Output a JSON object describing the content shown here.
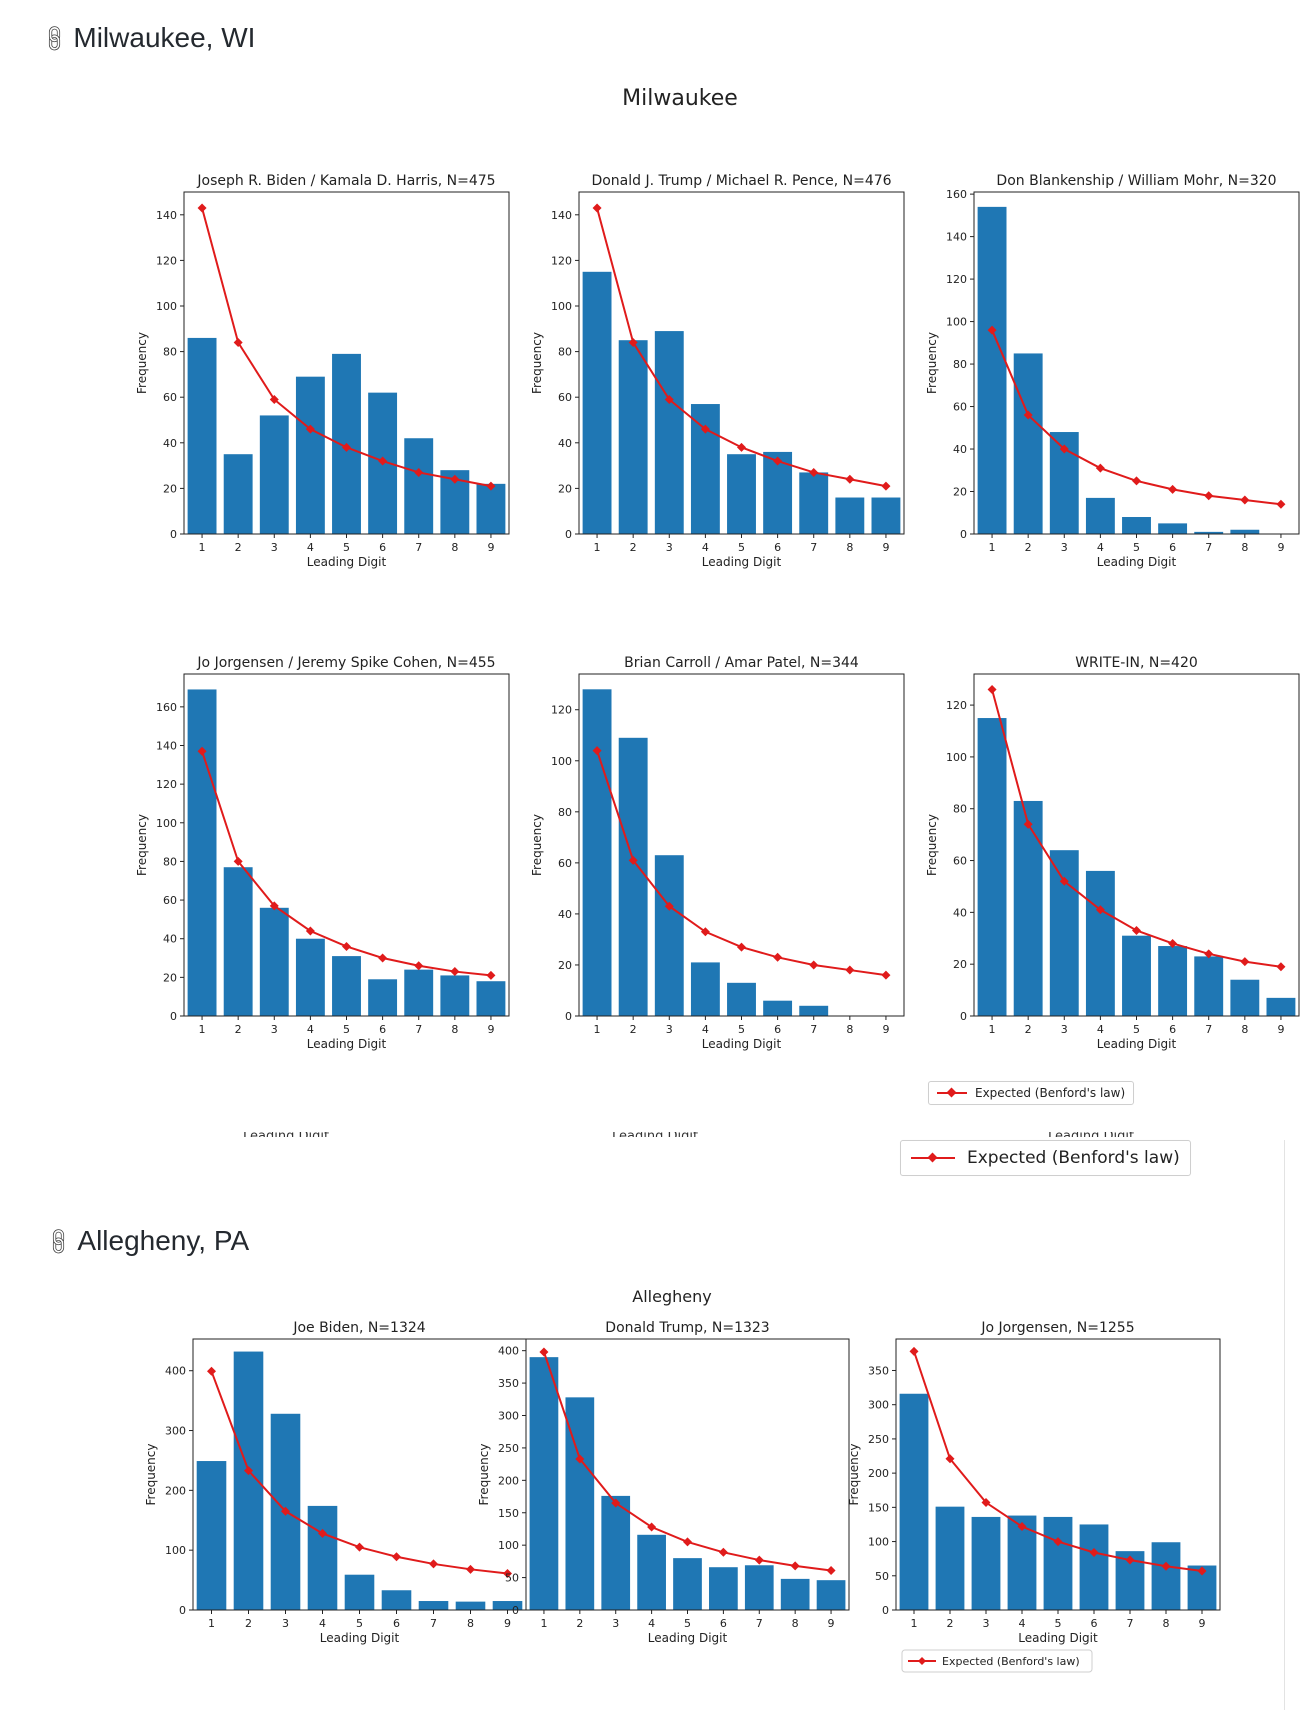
{
  "sections": {
    "milwaukee": {
      "heading": "Milwaukee, WI",
      "figure_title": "Milwaukee"
    },
    "allegheny": {
      "heading": "Allegheny, PA",
      "figure_title": "Allegheny"
    }
  },
  "legend": {
    "label": "Expected (Benford's law)",
    "line_color": "#e01b1b",
    "bar_color": "#1f77b4"
  },
  "icons": {
    "heading_link": "link-icon"
  },
  "ghost_label": "Leading Digit",
  "chart_data": [
    {
      "id": "mke-biden",
      "type": "bar",
      "title": "Joseph R. Biden / Kamala D. Harris, N=475",
      "xlabel": "Leading Digit",
      "ylabel": "Frequency",
      "categories": [
        "1",
        "2",
        "3",
        "4",
        "5",
        "6",
        "7",
        "8",
        "9"
      ],
      "series": [
        {
          "values": [
            86,
            35,
            52,
            69,
            79,
            62,
            42,
            28,
            22
          ]
        },
        {
          "name": "Expected (Benford's law)",
          "values": [
            143,
            84,
            59,
            46,
            38,
            32,
            27,
            24,
            21
          ]
        }
      ],
      "ylim": [
        0,
        150
      ],
      "yticks": [
        0,
        20,
        40,
        60,
        80,
        100,
        120,
        140
      ],
      "legend": false
    },
    {
      "id": "mke-trump",
      "type": "bar",
      "title": "Donald J. Trump / Michael R. Pence, N=476",
      "xlabel": "Leading Digit",
      "ylabel": "Frequency",
      "categories": [
        "1",
        "2",
        "3",
        "4",
        "5",
        "6",
        "7",
        "8",
        "9"
      ],
      "series": [
        {
          "values": [
            115,
            85,
            89,
            57,
            35,
            36,
            27,
            16,
            16
          ]
        },
        {
          "name": "Expected (Benford's law)",
          "values": [
            143,
            84,
            59,
            46,
            38,
            32,
            27,
            24,
            21
          ]
        }
      ],
      "ylim": [
        0,
        150
      ],
      "yticks": [
        0,
        20,
        40,
        60,
        80,
        100,
        120,
        140
      ],
      "legend": false
    },
    {
      "id": "mke-blankenship",
      "type": "bar",
      "title": "Don Blankenship / William Mohr, N=320",
      "xlabel": "Leading Digit",
      "ylabel": "Frequency",
      "categories": [
        "1",
        "2",
        "3",
        "4",
        "5",
        "6",
        "7",
        "8",
        "9"
      ],
      "series": [
        {
          "values": [
            154,
            85,
            48,
            17,
            8,
            5,
            1,
            2,
            0
          ]
        },
        {
          "name": "Expected (Benford's law)",
          "values": [
            96,
            56,
            40,
            31,
            25,
            21,
            18,
            16,
            14
          ]
        }
      ],
      "ylim": [
        0,
        161
      ],
      "yticks": [
        0,
        20,
        40,
        60,
        80,
        100,
        120,
        140,
        160
      ],
      "legend": false
    },
    {
      "id": "mke-jorgensen",
      "type": "bar",
      "title": "Jo Jorgensen / Jeremy Spike Cohen, N=455",
      "xlabel": "Leading Digit",
      "ylabel": "Frequency",
      "categories": [
        "1",
        "2",
        "3",
        "4",
        "5",
        "6",
        "7",
        "8",
        "9"
      ],
      "series": [
        {
          "values": [
            169,
            77,
            56,
            40,
            31,
            19,
            24,
            21,
            18
          ]
        },
        {
          "name": "Expected (Benford's law)",
          "values": [
            137,
            80,
            57,
            44,
            36,
            30,
            26,
            23,
            21
          ]
        }
      ],
      "ylim": [
        0,
        177
      ],
      "yticks": [
        0,
        20,
        40,
        60,
        80,
        100,
        120,
        140,
        160
      ],
      "legend": false
    },
    {
      "id": "mke-carroll",
      "type": "bar",
      "title": "Brian Carroll / Amar Patel, N=344",
      "xlabel": "Leading Digit",
      "ylabel": "Frequency",
      "categories": [
        "1",
        "2",
        "3",
        "4",
        "5",
        "6",
        "7",
        "8",
        "9"
      ],
      "series": [
        {
          "values": [
            128,
            109,
            63,
            21,
            13,
            6,
            4,
            0,
            0
          ]
        },
        {
          "name": "Expected (Benford's law)",
          "values": [
            104,
            61,
            43,
            33,
            27,
            23,
            20,
            18,
            16
          ]
        }
      ],
      "ylim": [
        0,
        134
      ],
      "yticks": [
        0,
        20,
        40,
        60,
        80,
        100,
        120
      ],
      "legend": false
    },
    {
      "id": "mke-writein",
      "type": "bar",
      "title": "WRITE-IN, N=420",
      "xlabel": "Leading Digit",
      "ylabel": "Frequency",
      "categories": [
        "1",
        "2",
        "3",
        "4",
        "5",
        "6",
        "7",
        "8",
        "9"
      ],
      "series": [
        {
          "values": [
            115,
            83,
            64,
            56,
            31,
            27,
            23,
            14,
            7
          ]
        },
        {
          "name": "Expected (Benford's law)",
          "values": [
            126,
            74,
            52,
            41,
            33,
            28,
            24,
            21,
            19
          ]
        }
      ],
      "ylim": [
        0,
        132
      ],
      "yticks": [
        0,
        20,
        40,
        60,
        80,
        100,
        120
      ],
      "legend": true,
      "legend_loc": "below"
    },
    {
      "id": "alg-biden",
      "type": "bar",
      "title": "Joe Biden, N=1324",
      "xlabel": "Leading Digit",
      "ylabel": "Frequency",
      "categories": [
        "1",
        "2",
        "3",
        "4",
        "5",
        "6",
        "7",
        "8",
        "9"
      ],
      "series": [
        {
          "values": [
            249,
            432,
            328,
            174,
            59,
            33,
            15,
            14,
            15
          ]
        },
        {
          "name": "Expected (Benford's law)",
          "values": [
            399,
            233,
            165,
            128,
            105,
            89,
            77,
            68,
            61
          ]
        }
      ],
      "ylim": [
        0,
        453
      ],
      "yticks": [
        0,
        100,
        200,
        300,
        400
      ],
      "legend": false
    },
    {
      "id": "alg-trump",
      "type": "bar",
      "title": "Donald Trump, N=1323",
      "xlabel": "Leading Digit",
      "ylabel": "Frequency",
      "categories": [
        "1",
        "2",
        "3",
        "4",
        "5",
        "6",
        "7",
        "8",
        "9"
      ],
      "series": [
        {
          "values": [
            390,
            328,
            176,
            116,
            80,
            66,
            69,
            48,
            46
          ]
        },
        {
          "name": "Expected (Benford's law)",
          "values": [
            398,
            233,
            165,
            128,
            105,
            89,
            77,
            68,
            61
          ]
        }
      ],
      "ylim": [
        0,
        418
      ],
      "yticks": [
        0,
        50,
        100,
        150,
        200,
        250,
        300,
        350,
        400
      ],
      "legend": false
    },
    {
      "id": "alg-jorgensen",
      "type": "bar",
      "title": "Jo Jorgensen, N=1255",
      "xlabel": "Leading Digit",
      "ylabel": "Frequency",
      "categories": [
        "1",
        "2",
        "3",
        "4",
        "5",
        "6",
        "7",
        "8",
        "9"
      ],
      "series": [
        {
          "values": [
            316,
            151,
            136,
            138,
            136,
            125,
            86,
            99,
            65
          ]
        },
        {
          "name": "Expected (Benford's law)",
          "values": [
            378,
            221,
            157,
            122,
            100,
            84,
            73,
            64,
            57
          ]
        }
      ],
      "ylim": [
        0,
        396
      ],
      "yticks": [
        0,
        50,
        100,
        150,
        200,
        250,
        300,
        350
      ],
      "legend": true,
      "legend_loc": "lower left"
    }
  ]
}
